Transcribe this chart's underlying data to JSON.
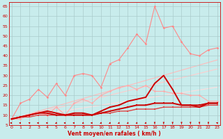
{
  "xlabel": "Vent moyen/en rafales ( km/h )",
  "xlabel_color": "#cc0000",
  "background_color": "#c8ecec",
  "grid_color": "#aacccc",
  "x": [
    0,
    1,
    2,
    3,
    4,
    5,
    6,
    7,
    8,
    9,
    10,
    11,
    12,
    13,
    14,
    15,
    16,
    17,
    18,
    19,
    20,
    21,
    22,
    23
  ],
  "ylim": [
    5,
    67
  ],
  "yticks": [
    5,
    10,
    15,
    20,
    25,
    30,
    35,
    40,
    45,
    50,
    55,
    60,
    65
  ],
  "xlim": [
    -0.3,
    23.3
  ],
  "line_upper_jagged": [
    8,
    16,
    18,
    23,
    19,
    26,
    20,
    30,
    31,
    30,
    24,
    36,
    38,
    44,
    51,
    46,
    65,
    54,
    55,
    47,
    41,
    40,
    43,
    44
  ],
  "line_mid_jagged": [
    8,
    8,
    10,
    12,
    10,
    14,
    10,
    16,
    18,
    16,
    20,
    22,
    24,
    25,
    23,
    25,
    22,
    22,
    21,
    21,
    20,
    20,
    17,
    17
  ],
  "line_trend1": [
    8,
    9.3,
    10.6,
    11.9,
    13.2,
    14.5,
    15.8,
    17.1,
    18.4,
    19.7,
    21,
    22.3,
    23.6,
    24.9,
    26.2,
    27.5,
    28.8,
    30.1,
    31.4,
    32.7,
    34,
    35.3,
    36.6,
    37.9
  ],
  "line_trend2": [
    8,
    9.1,
    10.2,
    11.3,
    12.4,
    13.5,
    14.6,
    15.7,
    16.8,
    17.9,
    19,
    20.1,
    21.2,
    22.3,
    23.4,
    24.5,
    25.6,
    26.7,
    27.8,
    28.9,
    30,
    31.1,
    32.2,
    33.3
  ],
  "line_trend3": [
    8,
    8.7,
    9.4,
    10.1,
    10.8,
    11.5,
    12.2,
    12.9,
    13.6,
    14.3,
    15,
    15.7,
    16.4,
    17.1,
    17.8,
    18.5,
    19.2,
    19.9,
    20.6,
    21.3,
    22,
    22.7,
    23.4,
    24.1
  ],
  "line_lower_dark1": [
    8,
    9,
    10,
    11,
    12,
    11,
    10,
    11,
    11,
    10,
    12,
    14,
    15,
    17,
    18,
    19,
    26,
    30,
    23,
    15,
    15,
    14,
    16,
    16
  ],
  "line_lower_dark2": [
    8,
    9,
    10,
    11,
    11,
    10,
    10,
    10,
    10,
    10,
    11,
    12,
    13,
    14,
    15,
    15,
    16,
    16,
    16,
    15,
    15,
    15,
    16,
    16
  ],
  "line_lower_flat": [
    8,
    9,
    9,
    10,
    10,
    10,
    10,
    10,
    10,
    10,
    11,
    11,
    12,
    12,
    13,
    13,
    13,
    14,
    14,
    14,
    14,
    14,
    15,
    15
  ],
  "color_upper_jagged": "#ff8888",
  "color_mid_jagged": "#ffaaaa",
  "color_trend1": "#ffbbbb",
  "color_trend2": "#ffcccc",
  "color_trend3": "#ffdddd",
  "color_lower_dark1": "#cc0000",
  "color_lower_dark2": "#cc0000",
  "color_lower_flat": "#dd4444",
  "wind_x": [
    0,
    1,
    2,
    3,
    4,
    5,
    6,
    7,
    8,
    9,
    10,
    11,
    12,
    13,
    14,
    15,
    16,
    17,
    18,
    19,
    20,
    21,
    22,
    23
  ],
  "wind_angles": [
    270,
    270,
    225,
    270,
    270,
    315,
    270,
    270,
    315,
    270,
    315,
    315,
    315,
    315,
    315,
    315,
    0,
    0,
    0,
    0,
    0,
    0,
    0,
    225
  ],
  "wind_color": "#cc0000",
  "wind_y": 6.0
}
